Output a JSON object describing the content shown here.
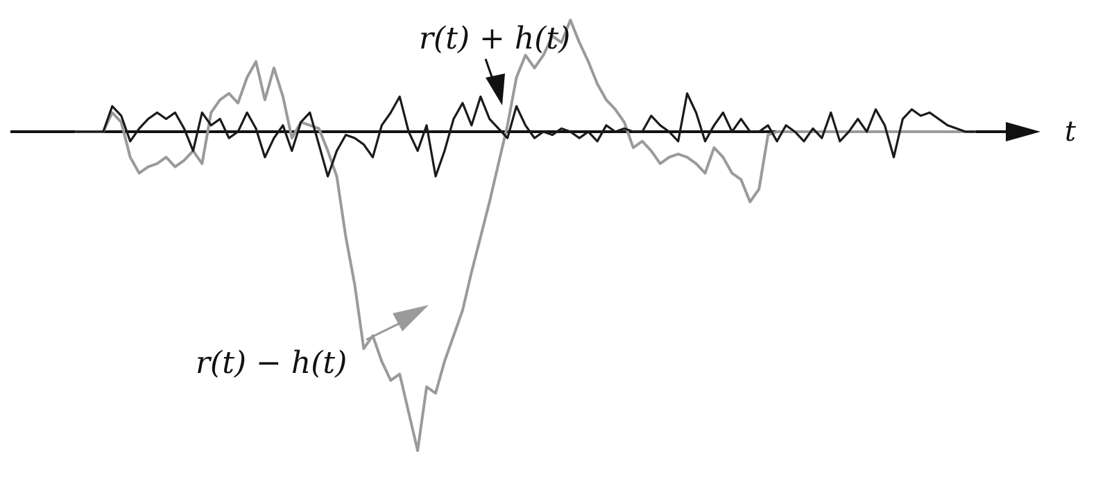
{
  "chart_data": {
    "type": "line",
    "title": "",
    "xlabel": "t",
    "ylabel": "",
    "grid": false,
    "legend": "none",
    "xlim": [
      0,
      100
    ],
    "ylim": [
      -100,
      35
    ],
    "colors": {
      "axis": "#111111",
      "sum": "#1a1a1a",
      "diff": "#9a9a9a"
    },
    "series": [
      {
        "name": "r(t) + h(t)",
        "x": [
          0,
          2,
          3,
          4,
          5,
          6,
          7,
          8,
          9,
          10,
          11,
          12,
          13,
          14,
          15,
          16,
          17,
          18,
          19,
          20,
          21,
          22,
          23,
          24,
          25,
          26,
          27,
          28,
          29,
          30,
          31,
          32,
          33,
          34,
          35,
          36,
          37,
          38,
          39,
          40,
          41,
          42,
          43,
          44,
          45,
          46,
          47,
          48,
          49,
          50,
          51,
          52,
          53,
          54,
          55,
          56,
          57,
          58,
          59,
          60,
          61,
          62,
          63,
          64,
          65,
          66,
          67,
          68,
          69,
          70,
          71,
          72,
          73,
          74,
          75,
          76,
          77,
          78,
          79,
          80,
          81,
          82,
          83,
          84,
          85,
          86,
          87,
          88,
          89,
          90,
          91,
          92,
          93,
          94,
          95,
          96,
          97,
          98,
          99,
          100
        ],
        "y": [
          0,
          0,
          0,
          8,
          5,
          -3,
          1,
          4,
          6,
          4,
          6,
          1,
          -6,
          6,
          2,
          4,
          -2,
          0,
          6,
          1,
          -8,
          -2,
          2,
          -6,
          3,
          6,
          -4,
          -14,
          -6,
          -1,
          -2,
          -4,
          -8,
          2,
          6,
          11,
          0,
          -6,
          2,
          -14,
          -6,
          4,
          9,
          2,
          11,
          4,
          1,
          -2,
          8,
          2,
          -2,
          0,
          -1,
          1,
          0,
          -2,
          0,
          -3,
          2,
          0,
          1,
          0,
          0,
          5,
          2,
          0,
          -3,
          12,
          6,
          -3,
          2,
          6,
          0,
          4,
          0,
          0,
          2,
          -3,
          2,
          0,
          -3,
          1,
          -2,
          6,
          -3,
          0,
          4,
          0,
          7,
          2,
          -8,
          4,
          7,
          5,
          6,
          4,
          2,
          1,
          0,
          0
        ]
      },
      {
        "name": "r(t) − h(t)",
        "x": [
          0,
          2,
          3,
          4,
          5,
          6,
          7,
          8,
          9,
          10,
          11,
          12,
          13,
          14,
          15,
          16,
          17,
          18,
          19,
          20,
          21,
          22,
          23,
          24,
          25,
          26,
          27,
          28,
          29,
          30,
          31,
          32,
          33,
          34,
          35,
          36,
          37,
          38,
          39,
          40,
          41,
          42,
          43,
          44,
          45,
          46,
          47,
          48,
          49,
          50,
          51,
          52,
          53,
          54,
          55,
          56,
          57,
          58,
          59,
          60,
          61,
          62,
          63,
          64,
          65,
          66,
          67,
          68,
          69,
          70,
          71,
          72,
          73,
          74,
          75,
          76,
          77,
          78,
          79,
          80,
          81,
          82,
          83,
          84,
          85,
          86,
          87,
          88,
          89,
          90,
          91,
          92,
          93,
          94,
          95,
          96,
          97,
          98,
          99,
          100
        ],
        "y": [
          0,
          0,
          0,
          6,
          3,
          -8,
          -13,
          -11,
          -10,
          -8,
          -11,
          -9,
          -6,
          -10,
          6,
          10,
          12,
          9,
          17,
          22,
          10,
          20,
          11,
          -2,
          3,
          2,
          1,
          -6,
          -14,
          -33,
          -48,
          -68,
          -64,
          -72,
          -78,
          -76,
          -88,
          -100,
          -80,
          -82,
          -72,
          -64,
          -56,
          -44,
          -33,
          -22,
          -10,
          2,
          17,
          24,
          20,
          24,
          30,
          28,
          35,
          28,
          22,
          15,
          10,
          7,
          3,
          -5,
          -3,
          -6,
          -10,
          -8,
          -7,
          -8,
          -10,
          -13,
          -5,
          -8,
          -13,
          -15,
          -22,
          -18,
          -1,
          0,
          0,
          0,
          0,
          0,
          0,
          0,
          0,
          0,
          0,
          0,
          0,
          0,
          0,
          0,
          0,
          0,
          0,
          0,
          0,
          0,
          0,
          0
        ]
      }
    ],
    "annotations": [
      {
        "text": "r(t) + h(t)",
        "target_series": 0,
        "at_x": 47
      },
      {
        "text": "r(t) − h(t)",
        "target_series": 1,
        "at_x": 35
      }
    ]
  }
}
